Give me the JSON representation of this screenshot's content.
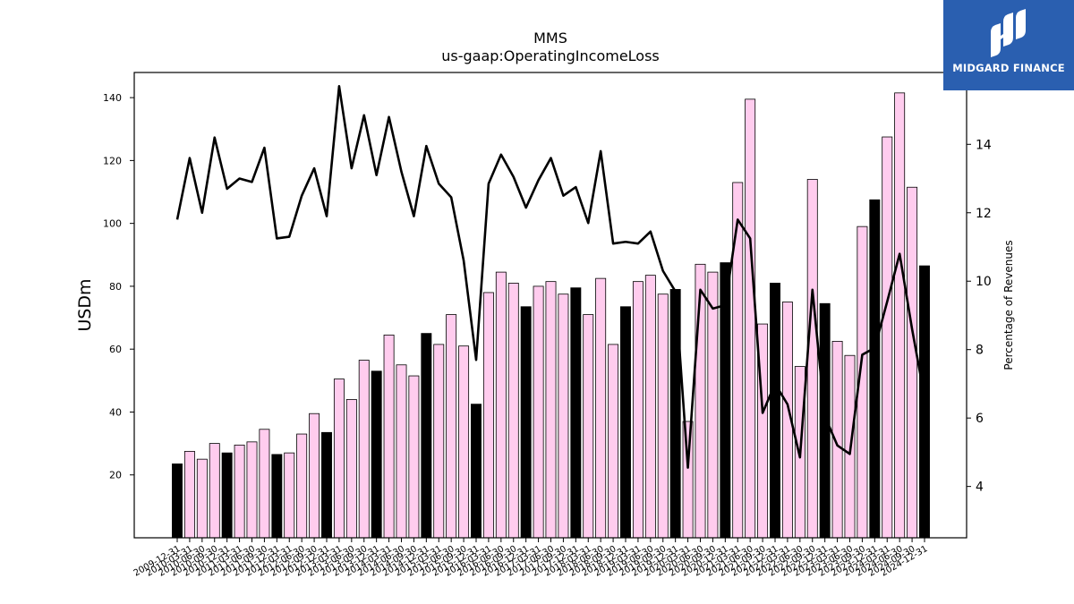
{
  "logo": {
    "text": "MIDGARD FINANCE"
  },
  "chart_data": {
    "type": "bar",
    "title": "MMS",
    "subtitle": "us-gaap:OperatingIncomeLoss",
    "ylabel": "USDm",
    "y2label": "Percentage of Revenues",
    "ylim": [
      0,
      148
    ],
    "y_ticks": [
      20,
      40,
      60,
      80,
      100,
      120,
      140
    ],
    "y2lim": [
      2.5,
      16.1
    ],
    "y2_ticks": [
      4,
      6,
      8,
      10,
      12,
      14
    ],
    "colors": {
      "annual": "#000000",
      "quarterly": "#ffccee",
      "line": "#000000"
    },
    "categories": [
      "2009-12-31",
      "2010-03-31",
      "2010-06-30",
      "2010-09-30",
      "2010-12-31",
      "2011-03-31",
      "2011-06-30",
      "2011-09-30",
      "2011-12-31",
      "2012-03-31",
      "2012-06-30",
      "2012-09-30",
      "2012-12-31",
      "2013-03-31",
      "2013-06-30",
      "2013-09-30",
      "2013-12-31",
      "2014-03-31",
      "2014-06-30",
      "2014-09-30",
      "2014-12-31",
      "2015-03-31",
      "2015-06-30",
      "2015-09-30",
      "2015-12-31",
      "2016-03-31",
      "2016-06-30",
      "2016-09-30",
      "2016-12-31",
      "2017-03-31",
      "2017-06-30",
      "2017-09-30",
      "2017-12-31",
      "2018-03-31",
      "2018-06-30",
      "2018-09-30",
      "2018-12-31",
      "2019-03-31",
      "2019-06-30",
      "2019-09-30",
      "2019-12-31",
      "2020-03-31",
      "2020-06-30",
      "2020-09-30",
      "2020-12-31",
      "2021-03-31",
      "2021-06-30",
      "2021-09-30",
      "2021-12-31",
      "2022-03-31",
      "2022-06-30",
      "2022-09-30",
      "2022-12-31",
      "2023-03-31",
      "2023-06-30",
      "2023-09-30",
      "2023-12-31",
      "2024-03-31",
      "2024-06-30",
      "2024-09-30",
      "2024-12-31"
    ],
    "is_annual": [
      true,
      false,
      false,
      false,
      true,
      false,
      false,
      false,
      true,
      false,
      false,
      false,
      true,
      false,
      false,
      false,
      true,
      false,
      false,
      false,
      true,
      false,
      false,
      false,
      true,
      false,
      false,
      false,
      true,
      false,
      false,
      false,
      true,
      false,
      false,
      false,
      true,
      false,
      false,
      false,
      true,
      false,
      false,
      false,
      true,
      false,
      false,
      false,
      true,
      false,
      false,
      false,
      true,
      false,
      false,
      false,
      true,
      false,
      false,
      false,
      true
    ],
    "series": [
      {
        "type": "bar",
        "values": [
          23.5,
          27.5,
          25,
          30,
          27,
          29.5,
          30.5,
          34.5,
          26.5,
          27,
          33,
          39.5,
          33.5,
          50.5,
          44,
          56.5,
          53,
          64.5,
          55,
          51.5,
          65,
          61.5,
          71,
          61,
          42.5,
          78,
          84.5,
          81,
          73.5,
          80,
          81.5,
          77.5,
          79.5,
          71,
          82.5,
          61.5,
          73.5,
          81.5,
          83.5,
          77.5,
          79,
          37,
          87,
          84.5,
          87.5,
          113,
          139.5,
          68,
          81,
          75,
          54.5,
          114,
          74.5,
          62.5,
          58,
          99,
          107.5,
          127.5,
          141.5,
          111.5,
          86.5
        ]
      },
      {
        "type": "line",
        "axis": "right",
        "values": [
          11.8,
          13.6,
          12.0,
          14.2,
          12.7,
          13.0,
          12.9,
          13.9,
          11.25,
          11.3,
          12.5,
          13.3,
          11.9,
          15.7,
          13.3,
          14.85,
          13.1,
          14.8,
          13.2,
          11.9,
          13.95,
          12.85,
          12.45,
          10.6,
          7.7,
          12.85,
          13.7,
          13.05,
          12.15,
          12.95,
          13.6,
          12.5,
          12.75,
          11.7,
          13.8,
          11.1,
          11.15,
          11.1,
          11.45,
          10.3,
          9.7,
          4.55,
          9.75,
          9.2,
          9.3,
          11.8,
          11.25,
          6.15,
          7.0,
          6.4,
          4.85,
          9.75,
          6.05,
          5.2,
          4.95,
          7.85,
          8.05,
          9.4,
          10.8,
          8.6,
          6.6
        ]
      }
    ]
  }
}
